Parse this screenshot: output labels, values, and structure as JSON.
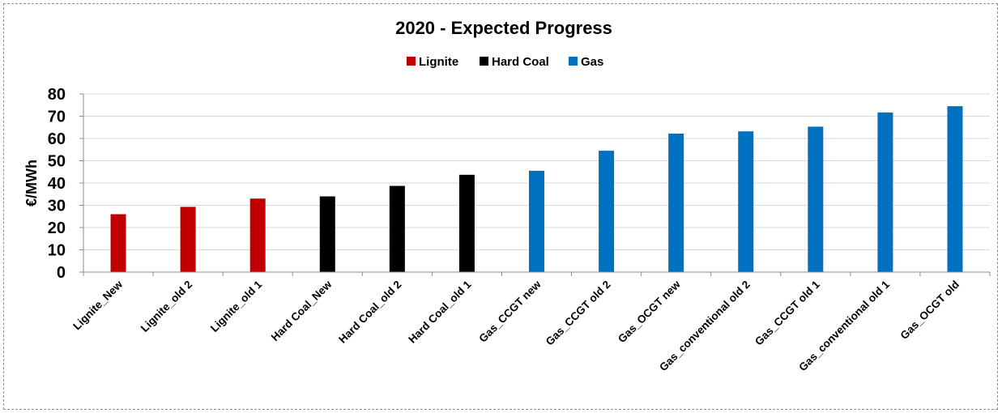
{
  "chart_data": {
    "type": "bar",
    "title": "2020 - Expected Progress",
    "xlabel": "",
    "ylabel": "€/MWh",
    "ylim": [
      0,
      80
    ],
    "yticks": [
      0,
      10,
      20,
      30,
      40,
      50,
      60,
      70,
      80
    ],
    "grid": true,
    "legend_position": "top-center",
    "categories": [
      "Lignite_New",
      "Lignite_old 2",
      "Lignite_old 1",
      "Hard Coal_New",
      "Hard Coal_old 2",
      "Hard Coal_old 1",
      "Gas_CCGT new",
      "Gas_CCGT old 2",
      "Gas_OCGT new",
      "Gas_conventional old 2",
      "Gas_CCGT old 1",
      "Gas_conventional old 1",
      "Gas_OCGT old"
    ],
    "series": [
      {
        "name": "Lignite",
        "color": "#C00000",
        "values": [
          26,
          29.3,
          33,
          null,
          null,
          null,
          null,
          null,
          null,
          null,
          null,
          null,
          null
        ]
      },
      {
        "name": "Hard Coal",
        "color": "#000000",
        "values": [
          null,
          null,
          null,
          34,
          38.7,
          43.7,
          null,
          null,
          null,
          null,
          null,
          null,
          null
        ]
      },
      {
        "name": "Gas",
        "color": "#0070C0",
        "values": [
          null,
          null,
          null,
          null,
          null,
          null,
          45.5,
          54.5,
          62.2,
          63.2,
          65.3,
          71.7,
          74.5
        ]
      }
    ]
  }
}
